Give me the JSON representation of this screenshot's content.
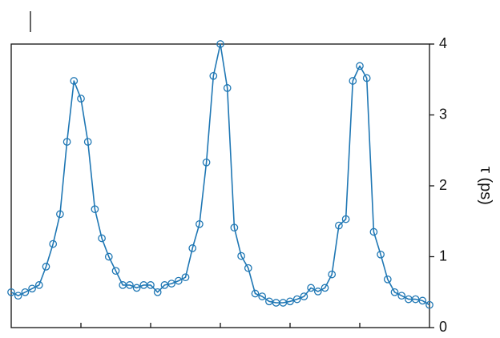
{
  "chart_data": {
    "type": "line",
    "title": "",
    "xlabel": "",
    "ylabel": "τ (ps)",
    "ylim": [
      0,
      4
    ],
    "yticks": [
      0,
      1,
      2,
      3,
      4
    ],
    "xlim": [
      0,
      60
    ],
    "xtick_count": 5,
    "xtick_labels_shown": false,
    "y_axis_position": "right",
    "grid": false,
    "legend": "none",
    "colors": {
      "series": "#1f77b4",
      "axis": "#111111"
    },
    "series": [
      {
        "marker": "open-circle",
        "x": [
          0,
          1,
          2,
          3,
          4,
          5,
          6,
          7,
          8,
          9,
          10,
          11,
          12,
          13,
          14,
          15,
          16,
          17,
          18,
          19,
          20,
          21,
          22,
          23,
          24,
          25,
          26,
          27,
          28,
          29,
          30,
          31,
          32,
          33,
          34,
          35,
          36,
          37,
          38,
          39,
          40,
          41,
          42,
          43,
          44,
          45,
          46,
          47,
          48,
          49,
          50,
          51,
          52,
          53,
          54,
          55,
          56,
          57,
          58,
          59,
          60
        ],
        "values": [
          0.5,
          0.45,
          0.5,
          0.55,
          0.6,
          0.86,
          1.18,
          1.6,
          2.62,
          3.48,
          3.23,
          2.62,
          1.67,
          1.26,
          1.0,
          0.8,
          0.6,
          0.6,
          0.56,
          0.6,
          0.6,
          0.5,
          0.6,
          0.62,
          0.66,
          0.71,
          1.12,
          1.46,
          2.33,
          3.55,
          4.0,
          3.38,
          1.41,
          1.01,
          0.84,
          0.48,
          0.44,
          0.37,
          0.35,
          0.35,
          0.37,
          0.4,
          0.44,
          0.56,
          0.51,
          0.56,
          0.75,
          1.44,
          1.53,
          3.48,
          3.69,
          3.52,
          1.35,
          1.03,
          0.68,
          0.5,
          0.45,
          0.4,
          0.4,
          0.38,
          0.32
        ]
      }
    ]
  }
}
